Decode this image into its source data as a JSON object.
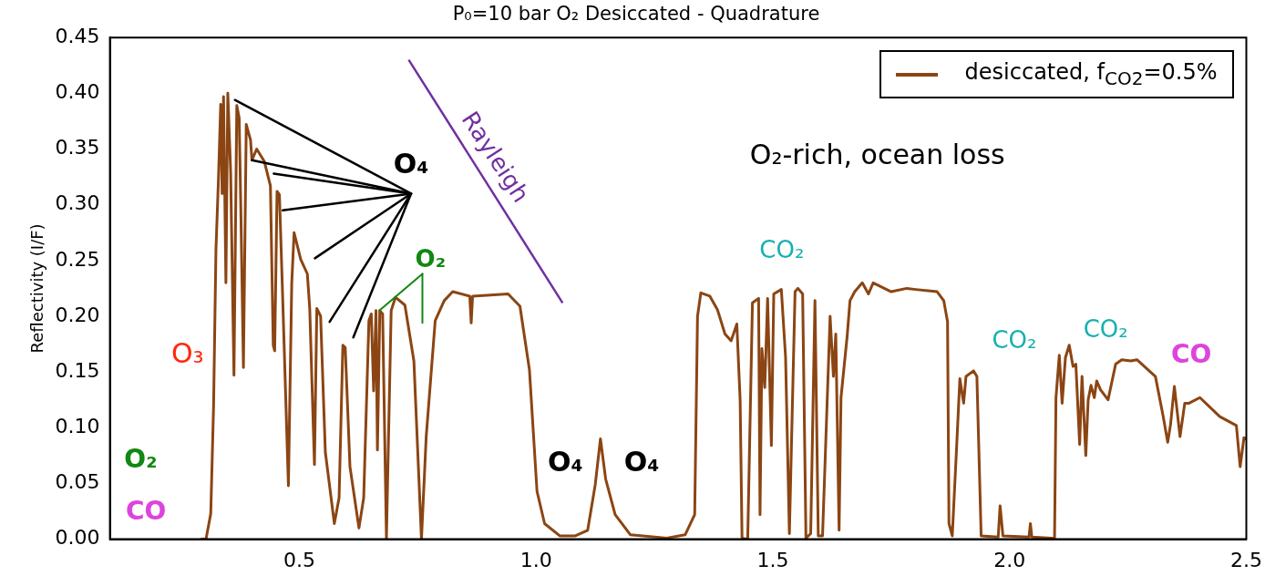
{
  "chart_data": {
    "type": "line",
    "title": "P₀=10 bar O₂ Desiccated - Quadrature",
    "ylabel": "Reflectivity (I/F)",
    "x": [
      0.292,
      0.303,
      0.313,
      0.319,
      0.324,
      0.329,
      0.334,
      0.337,
      0.34,
      0.345,
      0.349,
      0.355,
      0.362,
      0.368,
      0.373,
      0.377,
      0.382,
      0.388,
      0.397,
      0.4,
      0.41,
      0.426,
      0.439,
      0.445,
      0.448,
      0.453,
      0.458,
      0.464,
      0.477,
      0.484,
      0.489,
      0.503,
      0.517,
      0.522,
      0.532,
      0.537,
      0.545,
      0.555,
      0.574,
      0.584,
      0.592,
      0.597,
      0.607,
      0.626,
      0.636,
      0.647,
      0.652,
      0.657,
      0.662,
      0.665,
      0.67,
      0.676,
      0.684,
      0.694,
      0.703,
      0.723,
      0.742,
      0.758,
      0.768,
      0.787,
      0.806,
      0.824,
      0.86,
      0.863,
      0.866,
      0.941,
      0.966,
      0.986,
      1.002,
      1.018,
      1.05,
      1.083,
      1.109,
      1.125,
      1.136,
      1.147,
      1.167,
      1.199,
      1.276,
      1.315,
      1.335,
      1.341,
      1.348,
      1.367,
      1.383,
      1.399,
      1.412,
      1.424,
      1.431,
      1.435,
      1.447,
      1.457,
      1.47,
      1.473,
      1.477,
      1.483,
      1.489,
      1.497,
      1.502,
      1.518,
      1.527,
      1.535,
      1.541,
      1.547,
      1.553,
      1.563,
      1.57,
      1.58,
      1.589,
      1.596,
      1.605,
      1.621,
      1.628,
      1.633,
      1.64,
      1.644,
      1.657,
      1.663,
      1.673,
      1.689,
      1.702,
      1.712,
      1.75,
      1.783,
      1.802,
      1.847,
      1.861,
      1.869,
      1.872,
      1.879,
      1.888,
      1.895,
      1.903,
      1.908,
      1.924,
      1.931,
      1.94,
      1.976,
      1.98,
      1.986,
      2.041,
      2.044,
      2.047,
      2.089,
      2.095,
      2.098,
      2.105,
      2.111,
      2.118,
      2.126,
      2.134,
      2.14,
      2.148,
      2.153,
      2.161,
      2.166,
      2.172,
      2.179,
      2.184,
      2.192,
      2.208,
      2.224,
      2.237,
      2.256,
      2.269,
      2.308,
      2.324,
      2.334,
      2.34,
      2.348,
      2.36,
      2.37,
      2.379,
      2.402,
      2.444,
      2.479,
      2.487,
      2.495,
      2.5
    ],
    "series": [
      {
        "name": "desiccated, f$_{CO2}$=0.5%",
        "color": "#8b4513",
        "values": [
          0,
          0,
          0.023,
          0.12,
          0.26,
          0.32,
          0.39,
          0.31,
          0.397,
          0.23,
          0.4,
          0.33,
          0.147,
          0.389,
          0.378,
          0.284,
          0.154,
          0.372,
          0.358,
          0.34,
          0.35,
          0.339,
          0.317,
          0.174,
          0.169,
          0.312,
          0.309,
          0.229,
          0.048,
          0.229,
          0.275,
          0.251,
          0.238,
          0.207,
          0.067,
          0.207,
          0.2,
          0.078,
          0.014,
          0.037,
          0.174,
          0.172,
          0.065,
          0.01,
          0.037,
          0.196,
          0.202,
          0.133,
          0.205,
          0.08,
          0.205,
          0.202,
          0.001,
          0.205,
          0.217,
          0.21,
          0.16,
          0,
          0.092,
          0.196,
          0.214,
          0.222,
          0.218,
          0.194,
          0.218,
          0.22,
          0.209,
          0.152,
          0.043,
          0.014,
          0.003,
          0.003,
          0.008,
          0.049,
          0.09,
          0.054,
          0.022,
          0.004,
          0.001,
          0.004,
          0.022,
          0.2,
          0.221,
          0.218,
          0.206,
          0.184,
          0.178,
          0.193,
          0.125,
          0.001,
          0,
          0.212,
          0.216,
          0.022,
          0.171,
          0.136,
          0.216,
          0.084,
          0.22,
          0.224,
          0.163,
          0.005,
          0.114,
          0.222,
          0.225,
          0.22,
          0.001,
          0.005,
          0.214,
          0.003,
          0.003,
          0.2,
          0.146,
          0.184,
          0.008,
          0.127,
          0.182,
          0.214,
          0.222,
          0.23,
          0.22,
          0.23,
          0.222,
          0.225,
          0.224,
          0.222,
          0.214,
          0.195,
          0.014,
          0.003,
          0.081,
          0.144,
          0.122,
          0.146,
          0.151,
          0.146,
          0.003,
          0.002,
          0.03,
          0.003,
          0.002,
          0.014,
          0.002,
          0.001,
          0.001,
          0.127,
          0.165,
          0.122,
          0.163,
          0.174,
          0.155,
          0.157,
          0.085,
          0.146,
          0.075,
          0.125,
          0.138,
          0.127,
          0.142,
          0.134,
          0.125,
          0.157,
          0.161,
          0.16,
          0.161,
          0.146,
          0.111,
          0.087,
          0.103,
          0.137,
          0.092,
          0.122,
          0.122,
          0.127,
          0.11,
          0.102,
          0.065,
          0.091,
          0.09
        ]
      },
      {
        "type": "line",
        "x": [
          0.731,
          1.056
        ],
        "color": "#7030a0",
        "values": [
          0.43,
          0.212
        ]
      }
    ],
    "xlim": [
      0.1,
      2.5
    ],
    "xticks": [
      0.5,
      {
        "value": 1,
        "label": "1.0"
      },
      1.5,
      {
        "value": 2,
        "label": "2.0"
      },
      2.5
    ],
    "ylim": [
      0,
      0.45
    ],
    "yticks": [
      {
        "value": 0,
        "label": "0.00"
      },
      {
        "value": 0.05,
        "label": "0.05"
      },
      {
        "value": 0.1,
        "label": "0.10"
      },
      {
        "value": 0.15,
        "label": "0.15"
      },
      {
        "value": 0.2,
        "label": "0.20"
      },
      {
        "value": 0.25,
        "label": "0.25"
      },
      {
        "value": 0.3,
        "label": "0.30"
      },
      {
        "value": 0.35,
        "label": "0.35"
      },
      {
        "value": 0.4,
        "label": "0.40"
      },
      {
        "value": 0.45,
        "label": "0.45"
      }
    ],
    "legend": "top right",
    "annotations": [
      "O₃",
      "O₂",
      "CO",
      {
        "text": "O₄",
        "x": 0.4,
        "y": 0.34
      },
      {
        "text": "O₂",
        "x": 0.669,
        "y": 0.205
      },
      "Rayleigh",
      "O₄",
      "O₄",
      "CO₂",
      "CO₂",
      "CO₂",
      "CO",
      "O₂-rich, ocean loss"
    ]
  }
}
